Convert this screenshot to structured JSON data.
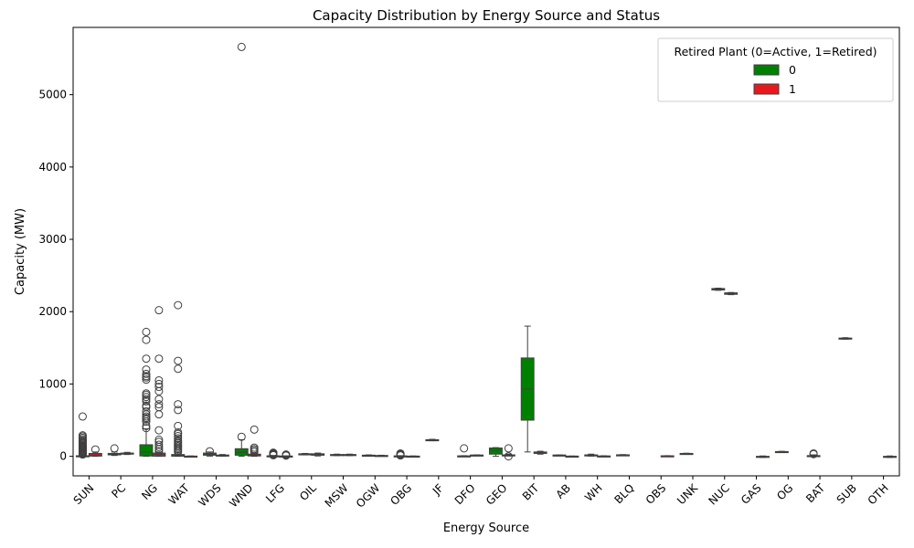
{
  "chart_data": {
    "type": "box",
    "title": "Capacity Distribution by Energy Source and Status",
    "xlabel": "Energy Source",
    "ylabel": "Capacity (MW)",
    "ylim": [
      -270,
      5930
    ],
    "yticks": [
      0,
      1000,
      2000,
      3000,
      4000,
      5000
    ],
    "grid": false,
    "legend": {
      "title": "Retired Plant (0=Active, 1=Retired)",
      "placement": "top-right",
      "entries": [
        {
          "label": "0",
          "color": "#008000"
        },
        {
          "label": "1",
          "color": "#e8191c"
        }
      ]
    },
    "categories": [
      "SUN",
      "PC",
      "NG",
      "WAT",
      "WDS",
      "WND",
      "LFG",
      "OIL",
      "MSW",
      "OGW",
      "OBG",
      "JF",
      "DFO",
      "GEO",
      "BIT",
      "AB",
      "WH",
      "BLQ",
      "OBS",
      "UNK",
      "NUC",
      "GAS",
      "OG",
      "BAT",
      "SUB",
      "OTH"
    ],
    "series": [
      {
        "name": "0",
        "color": "#008000",
        "boxes": [
          {
            "cat": "SUN",
            "q1": 1,
            "med": 3,
            "q3": 8,
            "lo": 0,
            "hi": 18,
            "fliers": [
              25,
              35,
              45,
              55,
              65,
              75,
              85,
              95,
              105,
              115,
              125,
              135,
              145,
              160,
              175,
              190,
              205,
              220,
              235,
              255,
              275,
              290,
              550
            ]
          },
          {
            "cat": "PC",
            "q1": 20,
            "med": 28,
            "q3": 40,
            "lo": 12,
            "hi": 60,
            "fliers": [
              110
            ]
          },
          {
            "cat": "NG",
            "q1": 5,
            "med": 60,
            "q3": 160,
            "lo": 0,
            "hi": 380,
            "fliers": [
              390,
              420,
              480,
              510,
              530,
              550,
              580,
              620,
              680,
              700,
              760,
              790,
              820,
              850,
              870,
              1060,
              1090,
              1110,
              1140,
              1200,
              1350,
              1610,
              1720
            ]
          },
          {
            "cat": "WAT",
            "q1": 2,
            "med": 6,
            "q3": 25,
            "lo": 0,
            "hi": 55,
            "fliers": [
              60,
              80,
              100,
              120,
              140,
              160,
              180,
              200,
              220,
              250,
              280,
              310,
              330,
              420,
              640,
              720,
              1210,
              1320,
              2090
            ]
          },
          {
            "cat": "WDS",
            "q1": 15,
            "med": 30,
            "q3": 45,
            "lo": 3,
            "hi": 60,
            "fliers": [
              70
            ]
          },
          {
            "cat": "WND",
            "q1": 15,
            "med": 55,
            "q3": 105,
            "lo": 0,
            "hi": 230,
            "fliers": [
              270,
              5660
            ]
          },
          {
            "cat": "LFG",
            "q1": 2,
            "med": 4,
            "q3": 7,
            "lo": 0,
            "hi": 12,
            "fliers": [
              15,
              20,
              25,
              30,
              35,
              40,
              45,
              50
            ]
          },
          {
            "cat": "OIL",
            "q1": 25,
            "med": 30,
            "q3": 35,
            "lo": 20,
            "hi": 40,
            "fliers": []
          },
          {
            "cat": "MSW",
            "q1": 15,
            "med": 20,
            "q3": 25,
            "lo": 10,
            "hi": 30,
            "fliers": []
          },
          {
            "cat": "OGW",
            "q1": 8,
            "med": 12,
            "q3": 16,
            "lo": 4,
            "hi": 20,
            "fliers": []
          },
          {
            "cat": "OBG",
            "q1": 2,
            "med": 4,
            "q3": 6,
            "lo": 0,
            "hi": 9,
            "fliers": [
              12,
              20,
              30,
              40
            ]
          },
          {
            "cat": "JF",
            "q1": 220,
            "med": 225,
            "q3": 230,
            "lo": 215,
            "hi": 235,
            "fliers": []
          },
          {
            "cat": "DFO",
            "q1": 2,
            "med": 4,
            "q3": 6,
            "lo": 0,
            "hi": 9,
            "fliers": [
              110
            ]
          },
          {
            "cat": "GEO",
            "q1": 30,
            "med": 85,
            "q3": 115,
            "lo": 0,
            "hi": 120,
            "fliers": []
          },
          {
            "cat": "BIT",
            "q1": 500,
            "med": 930,
            "q3": 1360,
            "lo": 60,
            "hi": 1800,
            "fliers": []
          },
          {
            "cat": "AB",
            "q1": 12,
            "med": 15,
            "q3": 18,
            "lo": 10,
            "hi": 20,
            "fliers": []
          },
          {
            "cat": "WH",
            "q1": 10,
            "med": 15,
            "q3": 20,
            "lo": 3,
            "hi": 30,
            "fliers": []
          },
          {
            "cat": "BLQ",
            "q1": 15,
            "med": 18,
            "q3": 21,
            "lo": 12,
            "hi": 24,
            "fliers": []
          },
          {
            "cat": "UNK",
            "q1": 35,
            "med": 38,
            "q3": 40,
            "lo": 32,
            "hi": 43,
            "fliers": []
          },
          {
            "cat": "NUC",
            "q1": 2300,
            "med": 2310,
            "q3": 2320,
            "lo": 2295,
            "hi": 2325,
            "fliers": []
          },
          {
            "cat": "OG",
            "q1": 60,
            "med": 63,
            "q3": 66,
            "lo": 57,
            "hi": 69,
            "fliers": []
          },
          {
            "cat": "BAT",
            "q1": 3,
            "med": 6,
            "q3": 10,
            "lo": 0,
            "hi": 20,
            "fliers": [
              30,
              40
            ]
          },
          {
            "cat": "SUB",
            "q1": 1625,
            "med": 1630,
            "q3": 1635,
            "lo": 1620,
            "hi": 1640,
            "fliers": []
          }
        ]
      },
      {
        "name": "1",
        "color": "#e8191c",
        "boxes": [
          {
            "cat": "SUN",
            "q1": 3,
            "med": 20,
            "q3": 40,
            "lo": 0,
            "hi": 60,
            "fliers": [
              95
            ]
          },
          {
            "cat": "PC",
            "q1": 30,
            "med": 38,
            "q3": 45,
            "lo": 25,
            "hi": 55,
            "fliers": []
          },
          {
            "cat": "NG",
            "q1": 2,
            "med": 25,
            "q3": 45,
            "lo": 0,
            "hi": 60,
            "fliers": [
              70,
              100,
              130,
              160,
              200,
              230,
              360,
              580,
              680,
              720,
              790,
              900,
              960,
              1000,
              1050,
              1350,
              2020
            ]
          },
          {
            "cat": "WAT",
            "q1": 1,
            "med": 2,
            "q3": 3,
            "lo": 0,
            "hi": 5,
            "fliers": []
          },
          {
            "cat": "WDS",
            "q1": 8,
            "med": 12,
            "q3": 18,
            "lo": 2,
            "hi": 25,
            "fliers": []
          },
          {
            "cat": "WND",
            "q1": 5,
            "med": 15,
            "q3": 30,
            "lo": 0,
            "hi": 45,
            "fliers": [
              60,
              80,
              100,
              120,
              370
            ]
          },
          {
            "cat": "LFG",
            "q1": 1,
            "med": 2,
            "q3": 4,
            "lo": 0,
            "hi": 6,
            "fliers": [
              10,
              15,
              20,
              25
            ]
          },
          {
            "cat": "OIL",
            "q1": 15,
            "med": 25,
            "q3": 35,
            "lo": 5,
            "hi": 45,
            "fliers": []
          },
          {
            "cat": "MSW",
            "q1": 15,
            "med": 20,
            "q3": 25,
            "lo": 10,
            "hi": 30,
            "fliers": []
          },
          {
            "cat": "OGW",
            "q1": 5,
            "med": 8,
            "q3": 12,
            "lo": 2,
            "hi": 15,
            "fliers": []
          },
          {
            "cat": "OBG",
            "q1": 1,
            "med": 2,
            "q3": 3,
            "lo": 0,
            "hi": 5,
            "fliers": []
          },
          {
            "cat": "DFO",
            "q1": 12,
            "med": 15,
            "q3": 18,
            "lo": 10,
            "hi": 20,
            "fliers": []
          },
          {
            "cat": "GEO",
            "q1": 10,
            "med": 15,
            "q3": 20,
            "lo": 5,
            "hi": 30,
            "fliers": [
              0,
              110
            ]
          },
          {
            "cat": "BIT",
            "q1": 40,
            "med": 50,
            "q3": 60,
            "lo": 30,
            "hi": 70,
            "fliers": []
          },
          {
            "cat": "AB",
            "q1": 1,
            "med": 2,
            "q3": 3,
            "lo": 0,
            "hi": 4,
            "fliers": []
          },
          {
            "cat": "WH",
            "q1": 1,
            "med": 3,
            "q3": 5,
            "lo": 0,
            "hi": 8,
            "fliers": []
          },
          {
            "cat": "OBS",
            "q1": 3,
            "med": 5,
            "q3": 7,
            "lo": 1,
            "hi": 9,
            "fliers": []
          },
          {
            "cat": "NUC",
            "q1": 2240,
            "med": 2250,
            "q3": 2260,
            "lo": 2235,
            "hi": 2265,
            "fliers": []
          },
          {
            "cat": "GAS",
            "q1": -10,
            "med": -5,
            "q3": 0,
            "lo": -15,
            "hi": 5,
            "fliers": []
          },
          {
            "cat": "OTH",
            "q1": -10,
            "med": -5,
            "q3": 0,
            "lo": -15,
            "hi": 5,
            "fliers": []
          }
        ]
      }
    ]
  }
}
